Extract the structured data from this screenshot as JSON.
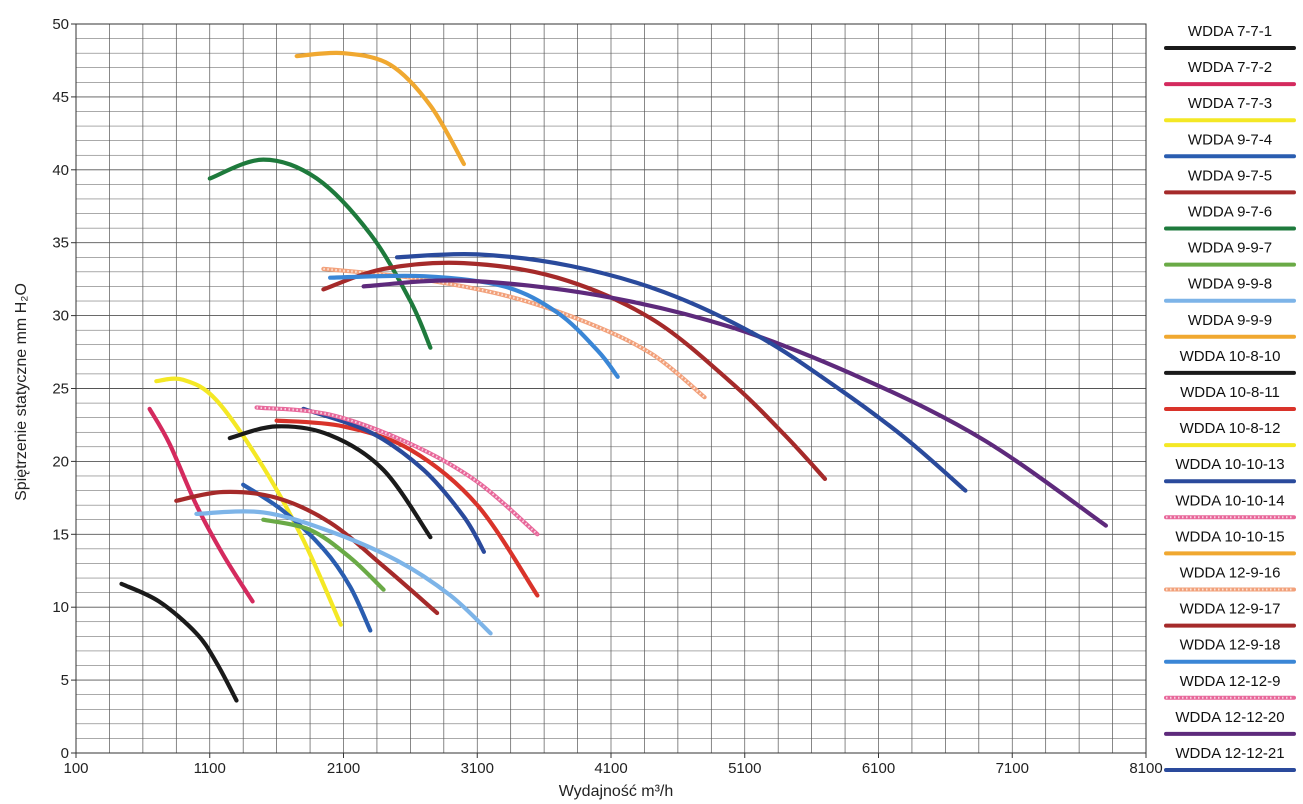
{
  "chart_data": {
    "type": "line",
    "xlabel": "Wydajność m³/h",
    "ylabel": "Spiętrzenie statyczne mm H₂O",
    "xlim": [
      100,
      8100
    ],
    "ylim": [
      0,
      50
    ],
    "x_ticks": [
      "100",
      "1100",
      "2100",
      "3100",
      "4100",
      "5100",
      "6100",
      "7100",
      "8100"
    ],
    "y_ticks": [
      "0",
      "5",
      "10",
      "15",
      "20",
      "25",
      "30",
      "35",
      "40",
      "45",
      "50"
    ],
    "grid": true,
    "legend_position": "right",
    "series": [
      {
        "name": "WDDA 7-7-1",
        "color": "#1a1a1a",
        "style": "solid",
        "points": [
          [
            440,
            11.6
          ],
          [
            720,
            10.4
          ],
          [
            1000,
            8.2
          ],
          [
            1150,
            6.2
          ],
          [
            1300,
            3.6
          ]
        ]
      },
      {
        "name": "WDDA 7-7-2",
        "color": "#d42a5e",
        "style": "solid",
        "points": [
          [
            650,
            23.6
          ],
          [
            800,
            21.2
          ],
          [
            1000,
            17.0
          ],
          [
            1200,
            13.6
          ],
          [
            1420,
            10.4
          ]
        ]
      },
      {
        "name": "WDDA 7-7-3",
        "color": "#f4e825",
        "style": "solid",
        "points": [
          [
            700,
            25.5
          ],
          [
            900,
            25.6
          ],
          [
            1150,
            24.2
          ],
          [
            1500,
            19.6
          ],
          [
            1800,
            14.6
          ],
          [
            2080,
            8.8
          ]
        ]
      },
      {
        "name": "WDDA 9-7-4",
        "color": "#2a5db0",
        "style": "solid",
        "points": [
          [
            1350,
            18.4
          ],
          [
            1650,
            16.6
          ],
          [
            1950,
            14.0
          ],
          [
            2150,
            11.4
          ],
          [
            2300,
            8.4
          ]
        ]
      },
      {
        "name": "WDDA 9-7-5",
        "color": "#a52a2a",
        "style": "solid",
        "points": [
          [
            850,
            17.3
          ],
          [
            1200,
            17.9
          ],
          [
            1600,
            17.5
          ],
          [
            2000,
            15.8
          ],
          [
            2400,
            12.8
          ],
          [
            2800,
            9.6
          ]
        ]
      },
      {
        "name": "WDDA 9-7-6",
        "color": "#1e7a3c",
        "style": "solid",
        "points": [
          [
            1100,
            39.4
          ],
          [
            1500,
            40.7
          ],
          [
            1900,
            39.4
          ],
          [
            2300,
            35.6
          ],
          [
            2600,
            31.0
          ],
          [
            2750,
            27.8
          ]
        ]
      },
      {
        "name": "WDDA 9-9-7",
        "color": "#6aaa46",
        "style": "solid",
        "points": [
          [
            1500,
            16.0
          ],
          [
            1850,
            15.3
          ],
          [
            2150,
            13.4
          ],
          [
            2400,
            11.2
          ]
        ]
      },
      {
        "name": "WDDA 9-9-8",
        "color": "#7db4e8",
        "style": "solid",
        "points": [
          [
            1000,
            16.4
          ],
          [
            1500,
            16.5
          ],
          [
            2000,
            15.2
          ],
          [
            2500,
            13.2
          ],
          [
            2900,
            10.8
          ],
          [
            3200,
            8.2
          ]
        ]
      },
      {
        "name": "WDDA 9-9-9",
        "color": "#f0a830",
        "style": "solid",
        "points": [
          [
            1750,
            47.8
          ],
          [
            2100,
            48.0
          ],
          [
            2450,
            47.2
          ],
          [
            2750,
            44.4
          ],
          [
            3000,
            40.4
          ]
        ]
      },
      {
        "name": "WDDA 10-8-10",
        "color": "#1a1a1a",
        "style": "solid",
        "points": [
          [
            1250,
            21.6
          ],
          [
            1600,
            22.4
          ],
          [
            2000,
            21.8
          ],
          [
            2400,
            19.4
          ],
          [
            2750,
            14.8
          ]
        ]
      },
      {
        "name": "WDDA 10-8-11",
        "color": "#d9332a",
        "style": "solid",
        "points": [
          [
            1600,
            22.8
          ],
          [
            2100,
            22.4
          ],
          [
            2600,
            20.8
          ],
          [
            3100,
            17.0
          ],
          [
            3550,
            10.8
          ]
        ]
      },
      {
        "name": "WDDA 10-8-12",
        "color": "#f4e825",
        "style": "solid",
        "points": []
      },
      {
        "name": "WDDA 10-10-13",
        "color": "#2a4a9c",
        "style": "solid",
        "points": [
          [
            1800,
            23.6
          ],
          [
            2300,
            22.0
          ],
          [
            2700,
            19.4
          ],
          [
            3000,
            16.2
          ],
          [
            3150,
            13.8
          ]
        ]
      },
      {
        "name": "WDDA 10-10-14",
        "color": "#e8679a",
        "style": "dashed",
        "points": [
          [
            1450,
            23.7
          ],
          [
            2000,
            23.2
          ],
          [
            2600,
            21.2
          ],
          [
            3100,
            18.6
          ],
          [
            3550,
            15.0
          ]
        ]
      },
      {
        "name": "WDDA 10-10-15",
        "color": "#f0a830",
        "style": "solid",
        "points": []
      },
      {
        "name": "WDDA 12-9-16",
        "color": "#f2a07a",
        "style": "dashed",
        "points": [
          [
            1950,
            33.2
          ],
          [
            2600,
            32.6
          ],
          [
            3300,
            31.4
          ],
          [
            3900,
            29.6
          ],
          [
            4400,
            27.4
          ],
          [
            4800,
            24.4
          ]
        ]
      },
      {
        "name": "WDDA 12-9-17",
        "color": "#a52a2a",
        "style": "solid",
        "points": [
          [
            1950,
            31.8
          ],
          [
            2400,
            33.2
          ],
          [
            3000,
            33.6
          ],
          [
            3700,
            32.6
          ],
          [
            4400,
            29.8
          ],
          [
            5000,
            25.4
          ],
          [
            5400,
            21.8
          ],
          [
            5700,
            18.8
          ]
        ]
      },
      {
        "name": "WDDA 12-9-18",
        "color": "#3a86d6",
        "style": "solid",
        "points": [
          [
            2000,
            32.6
          ],
          [
            2700,
            32.7
          ],
          [
            3300,
            32.0
          ],
          [
            3700,
            30.2
          ],
          [
            4000,
            27.6
          ],
          [
            4150,
            25.8
          ]
        ]
      },
      {
        "name": "WDDA 12-12-9",
        "color": "#e8679a",
        "style": "dashed",
        "points": []
      },
      {
        "name": "WDDA 12-12-20",
        "color": "#5e2a7c",
        "style": "solid",
        "points": [
          [
            2250,
            32.0
          ],
          [
            3000,
            32.4
          ],
          [
            4000,
            31.4
          ],
          [
            5000,
            29.2
          ],
          [
            6000,
            25.6
          ],
          [
            6900,
            21.4
          ],
          [
            7800,
            15.6
          ]
        ]
      },
      {
        "name": "WDDA 12-12-21",
        "color": "#2a4a9c",
        "style": "solid",
        "points": [
          [
            2500,
            34.0
          ],
          [
            3100,
            34.2
          ],
          [
            3800,
            33.4
          ],
          [
            4500,
            31.6
          ],
          [
            5200,
            28.6
          ],
          [
            5800,
            25.0
          ],
          [
            6300,
            21.6
          ],
          [
            6750,
            18.0
          ]
        ]
      }
    ]
  }
}
